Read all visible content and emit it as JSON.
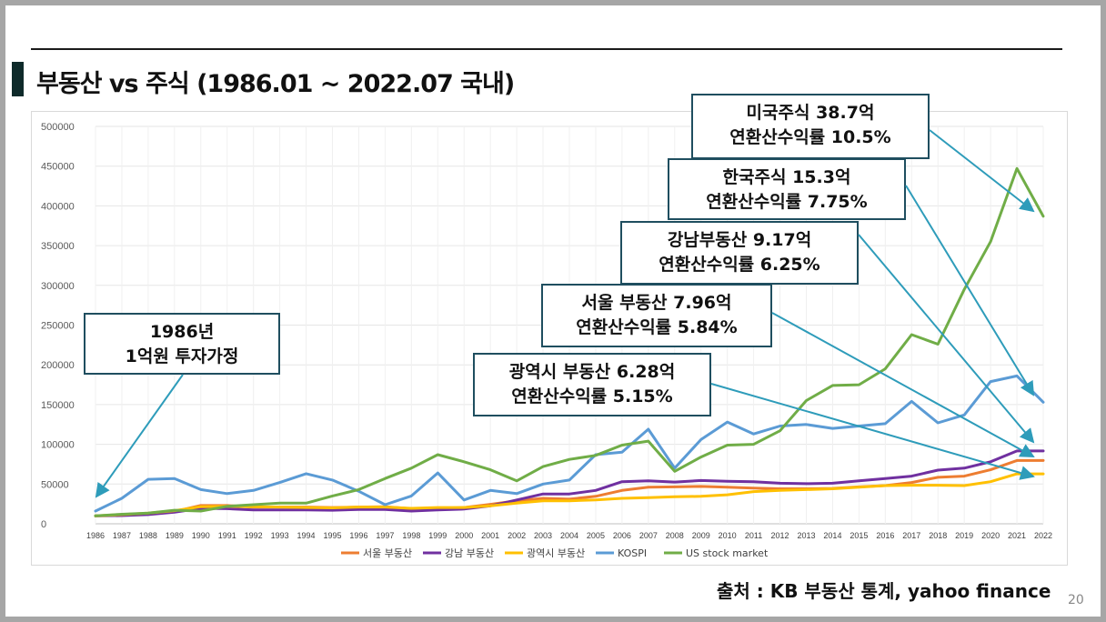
{
  "slide": {
    "title": "부동산 vs 주식 (1986.01 ~ 2022.07 국내)",
    "source": "출처 : KB 부동산 통계, yahoo finance",
    "page_number": "20"
  },
  "callouts": [
    {
      "id": "us",
      "line1": "미국주식 38.7억",
      "line2": "연환산수익률 10.5%"
    },
    {
      "id": "kr",
      "line1": "한국주식 15.3억",
      "line2": "연환산수익률 7.75%"
    },
    {
      "id": "gangnam",
      "line1": "강남부동산  9.17억",
      "line2": "연환산수익률 6.25%"
    },
    {
      "id": "seoul",
      "line1": "서울 부동산 7.96억",
      "line2": "연환산수익률 5.84%"
    },
    {
      "id": "metro",
      "line1": "광역시 부동산 6.28억",
      "line2": "연환산수익률 5.15%"
    },
    {
      "id": "start",
      "line1": "1986년",
      "line2": "1억원 투자가정"
    }
  ],
  "colors": {
    "seoul": "#ed7d31",
    "gangnam": "#7030a0",
    "metro": "#ffc000",
    "kospi": "#5b9bd5",
    "us": "#70ad47",
    "arrow": "#2e9cba",
    "callout_border": "#1f4e5f"
  },
  "chart_data": {
    "type": "line",
    "x": [
      "1986",
      "1987",
      "1988",
      "1989",
      "1990",
      "1991",
      "1992",
      "1993",
      "1994",
      "1995",
      "1996",
      "1997",
      "1998",
      "1999",
      "2000",
      "2001",
      "2002",
      "2003",
      "2004",
      "2005",
      "2006",
      "2007",
      "2008",
      "2009",
      "2010",
      "2011",
      "2012",
      "2013",
      "2014",
      "2015",
      "2016",
      "2017",
      "2018",
      "2019",
      "2020",
      "2021",
      "2022"
    ],
    "yticks": [
      0,
      50000,
      100000,
      150000,
      200000,
      250000,
      300000,
      350000,
      400000,
      450000,
      500000
    ],
    "ylim": [
      0,
      500000
    ],
    "grid": true,
    "legend_position": "bottom",
    "series": [
      {
        "key": "seoul",
        "name": "서울 부동산",
        "values": [
          10000,
          10500,
          12500,
          15500,
          23000,
          23000,
          21000,
          21000,
          21000,
          20500,
          21000,
          21500,
          19000,
          19500,
          20500,
          24500,
          29000,
          32000,
          31000,
          34500,
          42000,
          46000,
          46500,
          47000,
          46000,
          45000,
          44000,
          44000,
          44500,
          46500,
          48000,
          52000,
          58500,
          60000,
          68000,
          79600,
          79600
        ]
      },
      {
        "key": "gangnam",
        "name": "강남 부동산",
        "values": [
          10000,
          10300,
          11500,
          14500,
          19500,
          19000,
          17500,
          17500,
          17500,
          17000,
          18000,
          18000,
          16000,
          17500,
          18500,
          22500,
          30000,
          37500,
          37500,
          42000,
          53000,
          54000,
          52500,
          54500,
          53500,
          53000,
          51000,
          50500,
          51000,
          54000,
          57000,
          60000,
          67500,
          70000,
          78000,
          91700,
          91700
        ]
      },
      {
        "key": "metro",
        "name": "광역시 부동산",
        "values": [
          10000,
          11500,
          13500,
          16500,
          21500,
          22000,
          21500,
          21000,
          20500,
          20000,
          21000,
          21000,
          19500,
          20500,
          20500,
          22500,
          26000,
          29000,
          29000,
          30000,
          32000,
          33000,
          34000,
          34500,
          36500,
          40500,
          42000,
          43000,
          44000,
          46000,
          48000,
          48500,
          48500,
          48000,
          53000,
          62800,
          62800
        ]
      },
      {
        "key": "kospi",
        "name": "KOSPI",
        "values": [
          16000,
          32000,
          56000,
          57000,
          43000,
          38000,
          42000,
          52000,
          63000,
          55000,
          41000,
          24000,
          35000,
          64000,
          30000,
          42000,
          38000,
          50000,
          55000,
          87000,
          90000,
          119000,
          70000,
          106000,
          128000,
          113000,
          123000,
          125000,
          120000,
          123000,
          126000,
          154000,
          127000,
          137000,
          179000,
          186000,
          153000
        ]
      },
      {
        "key": "us",
        "name": "US stock market",
        "values": [
          10000,
          12000,
          13500,
          17000,
          16000,
          22000,
          24000,
          26000,
          26000,
          35000,
          43000,
          57000,
          70000,
          87000,
          78000,
          68000,
          54000,
          72000,
          81000,
          86000,
          99000,
          104000,
          66000,
          84000,
          99000,
          100000,
          117000,
          155000,
          174000,
          175000,
          195000,
          238000,
          226000,
          295000,
          355000,
          447000,
          387000
        ]
      }
    ]
  }
}
